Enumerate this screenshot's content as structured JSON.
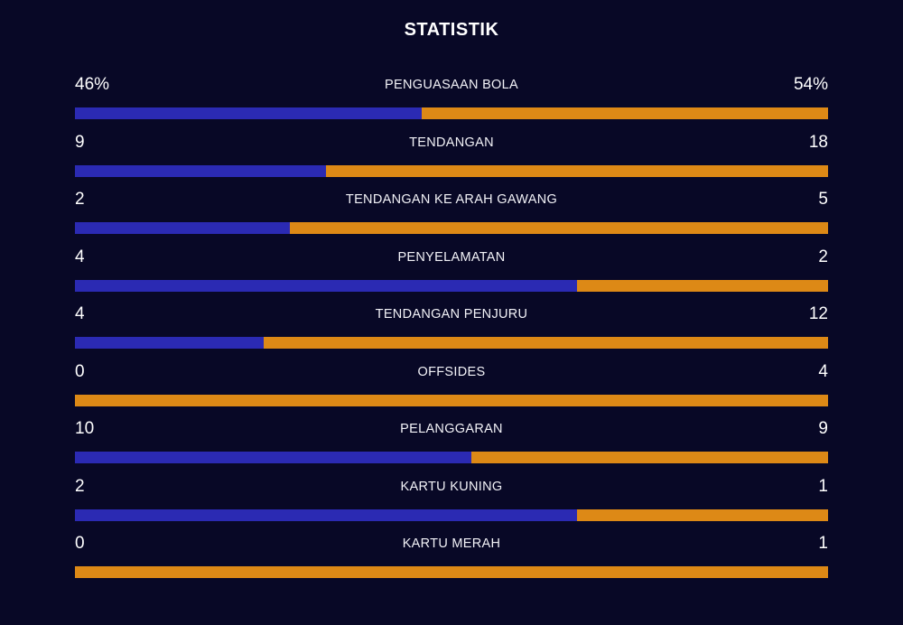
{
  "title": "STATISTIK",
  "colors": {
    "background": "#080826",
    "home_bar": "#2B2AB3",
    "away_bar": "#DD8916",
    "text": "#FFFFFF"
  },
  "stats": [
    {
      "label": "PENGUASAAN BOLA",
      "home": "46%",
      "away": "54%",
      "home_value": 46,
      "away_value": 54
    },
    {
      "label": "TENDANGAN",
      "home": "9",
      "away": "18",
      "home_value": 9,
      "away_value": 18
    },
    {
      "label": "TENDANGAN KE ARAH GAWANG",
      "home": "2",
      "away": "5",
      "home_value": 2,
      "away_value": 5
    },
    {
      "label": "PENYELAMATAN",
      "home": "4",
      "away": "2",
      "home_value": 4,
      "away_value": 2
    },
    {
      "label": "TENDANGAN PENJURU",
      "home": "4",
      "away": "12",
      "home_value": 4,
      "away_value": 12
    },
    {
      "label": "OFFSIDES",
      "home": "0",
      "away": "4",
      "home_value": 0,
      "away_value": 4
    },
    {
      "label": "PELANGGARAN",
      "home": "10",
      "away": "9",
      "home_value": 10,
      "away_value": 9
    },
    {
      "label": "KARTU KUNING",
      "home": "2",
      "away": "1",
      "home_value": 2,
      "away_value": 1
    },
    {
      "label": "KARTU MERAH",
      "home": "0",
      "away": "1",
      "home_value": 0,
      "away_value": 1
    }
  ]
}
